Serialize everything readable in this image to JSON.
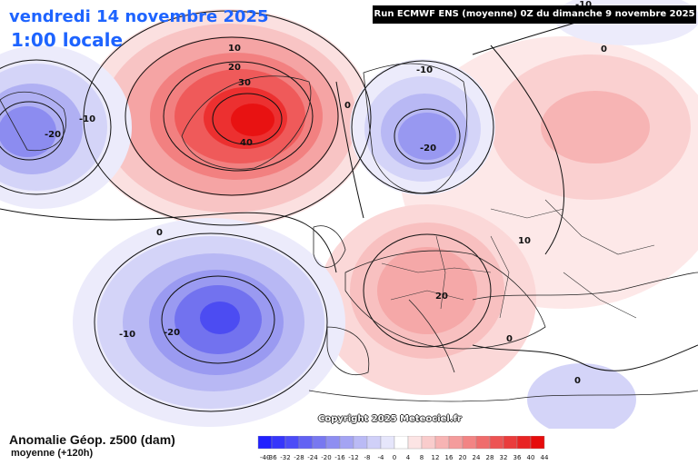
{
  "header": {
    "date": "vendredi 14 novembre 2025",
    "time": "1:00 locale",
    "run": "Run ECMWF ENS (moyenne) 0Z du dimanche 9 novembre 2025"
  },
  "copyright": "Copyright 2025 Meteociel.fr",
  "legend": {
    "title": "Anomalie Géop. z500 (dam)",
    "subtitle": "moyenne  (+120h)",
    "ticks": [
      "-40",
      "-36",
      "-32",
      "-28",
      "-24",
      "-20",
      "-16",
      "-12",
      "-8",
      "-4",
      "0",
      "4",
      "8",
      "12",
      "16",
      "20",
      "24",
      "28",
      "32",
      "36",
      "40",
      "44"
    ],
    "colors": [
      "#2020ff",
      "#3636fb",
      "#4c4cf7",
      "#6262f3",
      "#7878f0",
      "#8e8ef1",
      "#a4a4f3",
      "#babaf5",
      "#d0d0f8",
      "#e6e6fb",
      "#ffffff",
      "#fce4e4",
      "#f9cccc",
      "#f7b4b4",
      "#f49c9c",
      "#f28484",
      "#ef6c6c",
      "#ed5454",
      "#ea3c3c",
      "#e82424",
      "#e60c0c"
    ]
  },
  "contour_labels": [
    "10",
    "20",
    "30",
    "40",
    "-10",
    "-20",
    "0",
    "-10",
    "-20",
    "0",
    "10",
    "20",
    "-10",
    "-20",
    "0",
    "0",
    "-10",
    "0"
  ],
  "colors": {
    "title": "#1e64ff",
    "positive_strong": "#ee1c1c",
    "negative_strong": "#3a3af0"
  }
}
